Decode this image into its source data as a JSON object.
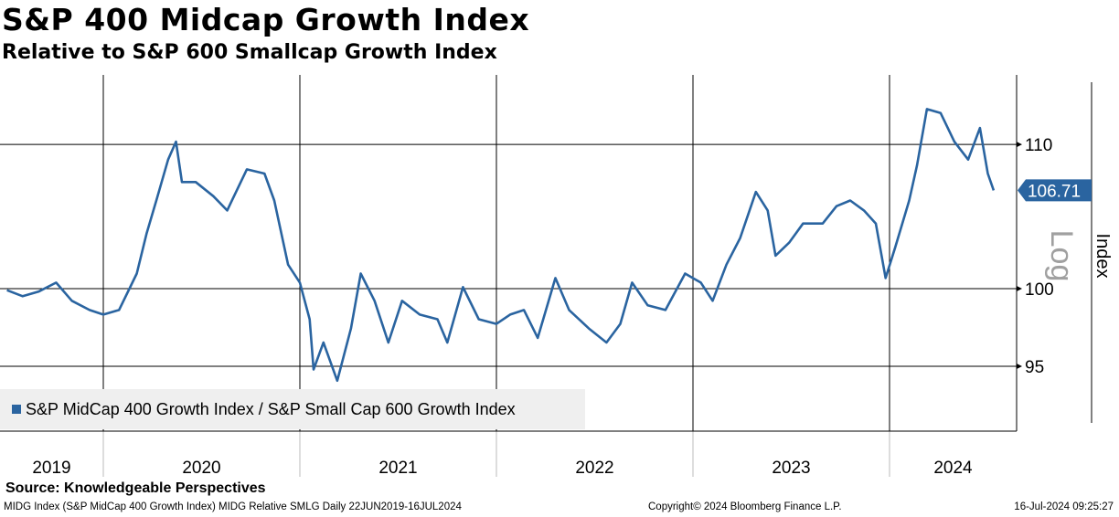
{
  "title": "S&P 400 Midcap Growth Index",
  "subtitle": "Relative to S&P 600 Smallcap Growth Index",
  "source": "Source: Knowledgeable Perspectives",
  "footer": {
    "left": "MIDG Index (S&P MidCap 400 Growth Index) MIDG Relative SMLG  Daily 22JUN2019-16JUL2024",
    "center": "Copyright© 2024 Bloomberg Finance L.P.",
    "right": "16-Jul-2024 09:25:27"
  },
  "colors": {
    "line": "#2a64a0",
    "grid": "#000000",
    "log_label": "#a0a0a0"
  },
  "chart_data": {
    "type": "line",
    "title": "S&P 400 Midcap Growth Index",
    "ylabel": "Index",
    "yscale_label": "Log",
    "yscale": "log",
    "ylim": [
      91.5,
      117
    ],
    "yticks": [
      95,
      100,
      110
    ],
    "ytick_labels": [
      "95",
      "100",
      "110"
    ],
    "xlim": [
      2019.47,
      2024.64
    ],
    "x_labels": [
      {
        "label": "2019",
        "year": 2019
      },
      {
        "label": "2020",
        "year": 2020
      },
      {
        "label": "2021",
        "year": 2021
      },
      {
        "label": "2022",
        "year": 2022
      },
      {
        "label": "2023",
        "year": 2023
      },
      {
        "label": "2024",
        "year": 2024
      }
    ],
    "last_value": "106.71",
    "legend": "S&P MidCap 400 Growth Index / S&P Small Cap 600 Growth Index",
    "legend_position": "bottom-left",
    "series": [
      {
        "name": "S&P MidCap 400 Growth Index / S&P Small Cap 600 Growth Index",
        "x": [
          2019.51,
          2019.59,
          2019.67,
          2019.76,
          2019.84,
          2019.93,
          2020.0,
          2020.08,
          2020.17,
          2020.22,
          2020.27,
          2020.33,
          2020.37,
          2020.4,
          2020.47,
          2020.56,
          2020.63,
          2020.73,
          2020.82,
          2020.87,
          2020.94,
          2021.0,
          2021.05,
          2021.07,
          2021.12,
          2021.19,
          2021.26,
          2021.31,
          2021.38,
          2021.45,
          2021.52,
          2021.61,
          2021.7,
          2021.75,
          2021.83,
          2021.91,
          2022.0,
          2022.07,
          2022.14,
          2022.21,
          2022.3,
          2022.37,
          2022.47,
          2022.56,
          2022.63,
          2022.69,
          2022.77,
          2022.86,
          2022.96,
          2023.04,
          2023.1,
          2023.17,
          2023.24,
          2023.32,
          2023.38,
          2023.42,
          2023.49,
          2023.56,
          2023.66,
          2023.73,
          2023.8,
          2023.87,
          2023.93,
          2023.98,
          2024.03,
          2024.1,
          2024.14,
          2024.19,
          2024.26,
          2024.33,
          2024.4,
          2024.46,
          2024.5,
          2024.53
        ],
        "values": [
          99.9,
          99.5,
          99.8,
          100.4,
          99.2,
          98.6,
          98.3,
          98.6,
          101.0,
          103.7,
          106.0,
          108.9,
          110.2,
          107.3,
          107.3,
          106.3,
          105.3,
          108.2,
          107.9,
          106.0,
          101.6,
          100.4,
          98.0,
          94.8,
          96.5,
          94.1,
          97.4,
          101.0,
          99.2,
          96.5,
          99.2,
          98.3,
          98.0,
          96.5,
          100.1,
          98.0,
          97.7,
          98.3,
          98.6,
          96.8,
          100.7,
          98.6,
          97.4,
          96.5,
          97.7,
          100.4,
          98.9,
          98.6,
          101.0,
          100.4,
          99.2,
          101.6,
          103.4,
          106.6,
          105.3,
          102.2,
          103.1,
          104.4,
          104.4,
          105.6,
          106.0,
          105.3,
          104.4,
          100.7,
          102.8,
          106.0,
          108.5,
          112.6,
          112.3,
          110.2,
          108.9,
          111.2,
          107.9,
          106.71
        ]
      }
    ]
  }
}
